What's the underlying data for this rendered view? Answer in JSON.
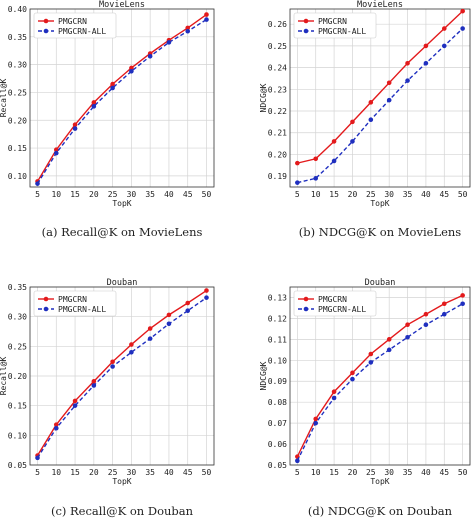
{
  "chart_data": [
    {
      "type": "line",
      "title": "MovieLens",
      "xlabel": "TopK",
      "ylabel": "Recall@K",
      "caption": "(a) Recall@K on MovieLens",
      "x": [
        5,
        10,
        15,
        20,
        25,
        30,
        35,
        40,
        45,
        50
      ],
      "xticks": [
        "5",
        "10",
        "15",
        "20",
        "25",
        "30",
        "35",
        "40",
        "45",
        "50"
      ],
      "ylim": [
        0.08,
        0.4
      ],
      "yticks": [
        0.1,
        0.15,
        0.2,
        0.25,
        0.3,
        0.35,
        0.4
      ],
      "ytick_labels": [
        "0.10",
        "0.15",
        "0.20",
        "0.25",
        "0.30",
        "0.35",
        "0.40"
      ],
      "grid": true,
      "legend_position": "top-left",
      "series": [
        {
          "name": "PMGCRN",
          "color": "#e31a1c",
          "dash": "solid",
          "marker": "circle",
          "values": [
            0.09,
            0.147,
            0.192,
            0.232,
            0.265,
            0.294,
            0.32,
            0.344,
            0.366,
            0.39
          ]
        },
        {
          "name": "PMGCRN-ALL",
          "color": "#1f2fbf",
          "dash": "dashed",
          "marker": "circle",
          "values": [
            0.086,
            0.141,
            0.185,
            0.225,
            0.258,
            0.288,
            0.315,
            0.34,
            0.36,
            0.381
          ]
        }
      ]
    },
    {
      "type": "line",
      "title": "MovieLens",
      "xlabel": "TopK",
      "ylabel": "NDCG@K",
      "caption": "(b) NDCG@K on MovieLens",
      "x": [
        5,
        10,
        15,
        20,
        25,
        30,
        35,
        40,
        45,
        50
      ],
      "xticks": [
        "5",
        "10",
        "15",
        "20",
        "25",
        "30",
        "35",
        "40",
        "45",
        "50"
      ],
      "ylim": [
        0.185,
        0.267
      ],
      "yticks": [
        0.19,
        0.2,
        0.21,
        0.22,
        0.23,
        0.24,
        0.25,
        0.26
      ],
      "ytick_labels": [
        "0.19",
        "0.20",
        "0.21",
        "0.22",
        "0.23",
        "0.24",
        "0.25",
        "0.26"
      ],
      "grid": true,
      "legend_position": "top-left",
      "series": [
        {
          "name": "PMGCRN",
          "color": "#e31a1c",
          "dash": "solid",
          "marker": "circle",
          "values": [
            0.196,
            0.198,
            0.206,
            0.215,
            0.224,
            0.233,
            0.242,
            0.25,
            0.258,
            0.266
          ]
        },
        {
          "name": "PMGCRN-ALL",
          "color": "#1f2fbf",
          "dash": "dashed",
          "marker": "circle",
          "values": [
            0.187,
            0.189,
            0.197,
            0.206,
            0.216,
            0.225,
            0.234,
            0.242,
            0.25,
            0.258
          ]
        }
      ]
    },
    {
      "type": "line",
      "title": "Douban",
      "xlabel": "TopK",
      "ylabel": "Recall@K",
      "caption": "(c) Recall@K on Douban",
      "x": [
        5,
        10,
        15,
        20,
        25,
        30,
        35,
        40,
        45,
        50
      ],
      "xticks": [
        "5",
        "10",
        "15",
        "20",
        "25",
        "30",
        "35",
        "40",
        "45",
        "50"
      ],
      "ylim": [
        0.05,
        0.35
      ],
      "yticks": [
        0.05,
        0.1,
        0.15,
        0.2,
        0.25,
        0.3,
        0.35
      ],
      "ytick_labels": [
        "0.05",
        "0.10",
        "0.15",
        "0.20",
        "0.25",
        "0.30",
        "0.35"
      ],
      "grid": true,
      "legend_position": "top-left",
      "series": [
        {
          "name": "PMGCRN",
          "color": "#e31a1c",
          "dash": "solid",
          "marker": "circle",
          "values": [
            0.066,
            0.118,
            0.158,
            0.191,
            0.224,
            0.253,
            0.28,
            0.303,
            0.323,
            0.344
          ]
        },
        {
          "name": "PMGCRN-ALL",
          "color": "#1f2fbf",
          "dash": "dashed",
          "marker": "circle",
          "values": [
            0.062,
            0.112,
            0.15,
            0.184,
            0.216,
            0.24,
            0.263,
            0.288,
            0.31,
            0.332
          ]
        }
      ]
    },
    {
      "type": "line",
      "title": "Douban",
      "xlabel": "TopK",
      "ylabel": "NDCG@K",
      "caption": "(d) NDCG@K on Douban",
      "x": [
        5,
        10,
        15,
        20,
        25,
        30,
        35,
        40,
        45,
        50
      ],
      "xticks": [
        "5",
        "10",
        "15",
        "20",
        "25",
        "30",
        "35",
        "40",
        "45",
        "50"
      ],
      "ylim": [
        0.05,
        0.135
      ],
      "yticks": [
        0.05,
        0.06,
        0.07,
        0.08,
        0.09,
        0.1,
        0.11,
        0.12,
        0.13
      ],
      "ytick_labels": [
        "0.05",
        "0.06",
        "0.07",
        "0.08",
        "0.09",
        "0.10",
        "0.11",
        "0.12",
        "0.13"
      ],
      "grid": true,
      "legend_position": "top-left",
      "series": [
        {
          "name": "PMGCRN",
          "color": "#e31a1c",
          "dash": "solid",
          "marker": "circle",
          "values": [
            0.054,
            0.072,
            0.085,
            0.094,
            0.103,
            0.11,
            0.117,
            0.122,
            0.127,
            0.131
          ]
        },
        {
          "name": "PMGCRN-ALL",
          "color": "#1f2fbf",
          "dash": "dashed",
          "marker": "circle",
          "values": [
            0.052,
            0.07,
            0.082,
            0.091,
            0.099,
            0.105,
            0.111,
            0.117,
            0.122,
            0.127
          ]
        }
      ]
    }
  ]
}
